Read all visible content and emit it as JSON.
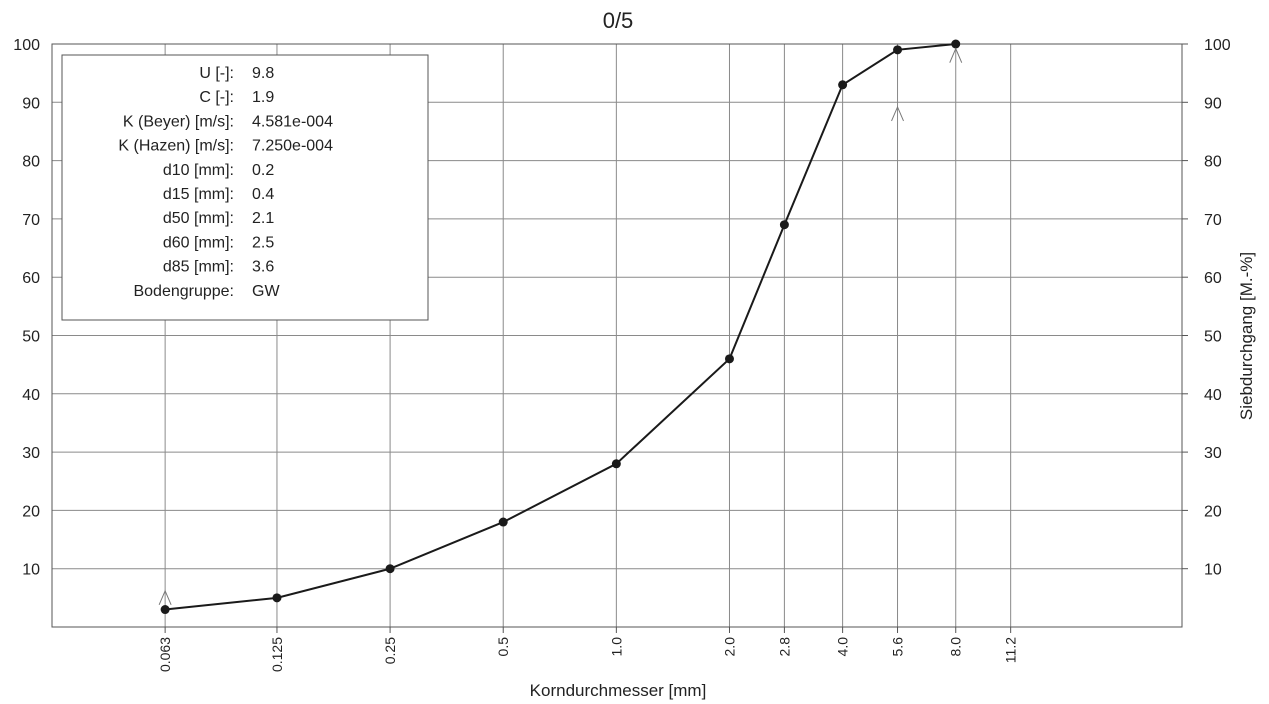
{
  "chart_data": {
    "type": "line",
    "title": "0/5",
    "xlabel": "Korndurchmesser  [mm]",
    "ylabel": "Siebdurchgang  [M.-%]",
    "x_scale": "log",
    "x_ticks": [
      "0.063",
      "0.125",
      "0.25",
      "0.5",
      "1.0",
      "2.0",
      "2.8",
      "4.0",
      "5.6",
      "8.0",
      "11.2"
    ],
    "y_ticks": [
      "100",
      "90",
      "80",
      "70",
      "60",
      "50",
      "40",
      "30",
      "20",
      "10"
    ],
    "y_ticks_right": [
      "100",
      "90",
      "80",
      "70",
      "60",
      "50",
      "40",
      "30",
      "20",
      "10"
    ],
    "ylim": [
      0,
      100
    ],
    "grid": true,
    "series": [
      {
        "x": [
          0.063,
          0.125,
          0.25,
          0.5,
          1.0,
          2.0,
          2.8,
          4.0,
          5.6,
          8.0
        ],
        "y": [
          3,
          5,
          10,
          18,
          28,
          46,
          69,
          93,
          99,
          100
        ]
      }
    ],
    "markers": [
      {
        "x": 0.063,
        "y": 5
      },
      {
        "x": 5.6,
        "y": 88
      },
      {
        "x": 8.0,
        "y": 98
      }
    ],
    "info_box": [
      {
        "label": "U [-]:",
        "value": "9.8"
      },
      {
        "label": "C [-]:",
        "value": "1.9"
      },
      {
        "label": "K (Beyer) [m/s]:",
        "value": "4.581e-004"
      },
      {
        "label": "K (Hazen) [m/s]:",
        "value": "7.250e-004"
      },
      {
        "label": "d10 [mm]:",
        "value": "0.2"
      },
      {
        "label": "d15 [mm]:",
        "value": "0.4"
      },
      {
        "label": "d50 [mm]:",
        "value": "2.1"
      },
      {
        "label": "d60 [mm]:",
        "value": "2.5"
      },
      {
        "label": "d85 [mm]:",
        "value": "3.6"
      },
      {
        "label": "Bodengruppe:",
        "value": "GW"
      }
    ],
    "line_color": "#1a1a1a",
    "grid_color": "#8a8a8a"
  }
}
